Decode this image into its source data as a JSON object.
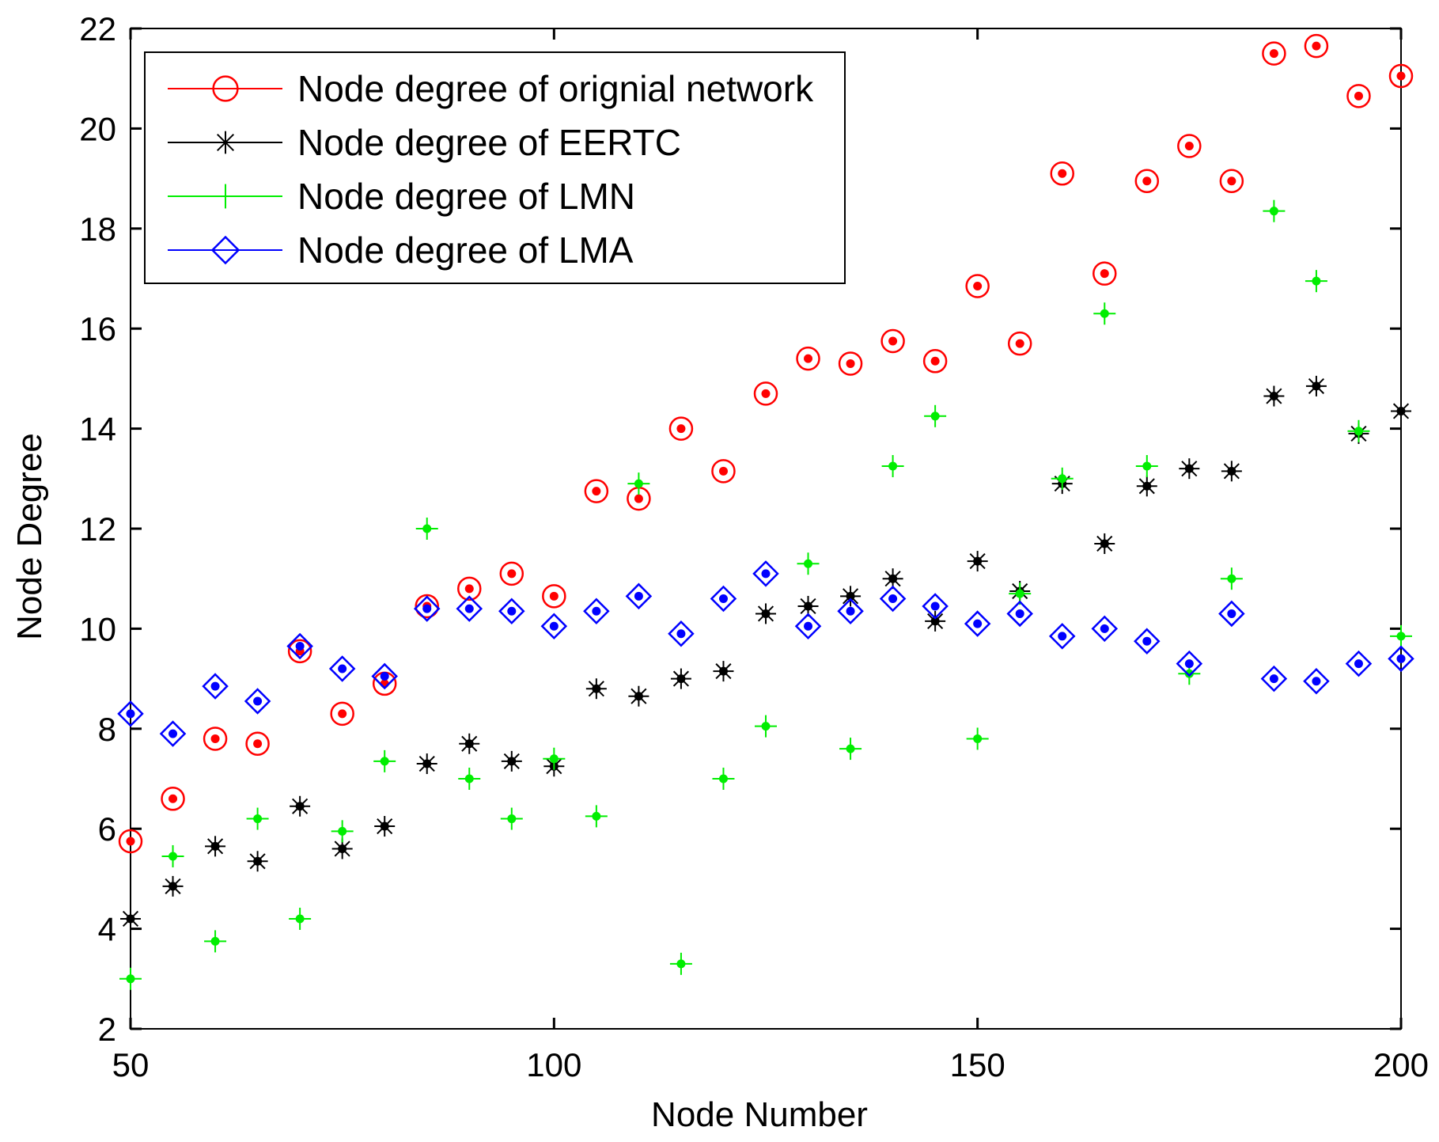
{
  "chart_data": {
    "type": "scatter",
    "title": "",
    "xlabel": "Node Number",
    "ylabel": "Node Degree",
    "xlim": [
      50,
      200
    ],
    "ylim": [
      2,
      22
    ],
    "xticks": [
      50,
      100,
      150,
      200
    ],
    "yticks": [
      2,
      4,
      6,
      8,
      10,
      12,
      14,
      16,
      18,
      20,
      22
    ],
    "grid": false,
    "legend_position": "top-left",
    "x": [
      50,
      55,
      60,
      65,
      70,
      75,
      80,
      85,
      90,
      95,
      100,
      105,
      110,
      115,
      120,
      125,
      130,
      135,
      140,
      145,
      150,
      155,
      160,
      165,
      170,
      175,
      180,
      185,
      190,
      195,
      200
    ],
    "series": [
      {
        "name": "Node degree of orignial network",
        "color": "#ff0000",
        "marker": "circle",
        "values": [
          5.75,
          6.6,
          7.8,
          7.7,
          9.55,
          8.3,
          8.9,
          10.45,
          10.8,
          11.1,
          10.65,
          12.75,
          12.6,
          14.0,
          13.15,
          14.7,
          15.4,
          15.3,
          15.75,
          15.35,
          16.85,
          15.7,
          19.1,
          17.1,
          18.95,
          19.65,
          18.95,
          21.5,
          21.65,
          20.65,
          21.05
        ]
      },
      {
        "name": "Node degree of EERTC",
        "color": "#000000",
        "marker": "star",
        "values": [
          4.2,
          4.85,
          5.65,
          5.35,
          6.45,
          5.6,
          6.05,
          7.3,
          7.7,
          7.35,
          7.25,
          8.8,
          8.65,
          9.0,
          9.15,
          10.3,
          10.45,
          10.65,
          11.0,
          10.15,
          11.35,
          10.75,
          12.9,
          11.7,
          12.85,
          13.2,
          13.15,
          14.65,
          14.85,
          13.9,
          14.35
        ]
      },
      {
        "name": "Node degree of LMN",
        "color": "#00ee00",
        "marker": "plus",
        "values": [
          3.0,
          5.45,
          3.75,
          6.2,
          4.2,
          5.95,
          7.35,
          12.0,
          7.0,
          6.2,
          7.4,
          6.25,
          12.9,
          3.3,
          7.0,
          8.05,
          11.3,
          7.6,
          13.25,
          14.25,
          7.8,
          10.7,
          13.0,
          16.3,
          13.25,
          9.1,
          11.0,
          18.35,
          16.95,
          13.95,
          9.85
        ]
      },
      {
        "name": "Node degree of LMA",
        "color": "#0000ff",
        "marker": "diamond",
        "values": [
          8.3,
          7.9,
          8.85,
          8.55,
          9.65,
          9.2,
          9.05,
          10.4,
          10.4,
          10.35,
          10.05,
          10.35,
          10.65,
          9.9,
          10.6,
          11.1,
          10.05,
          10.35,
          10.6,
          10.45,
          10.1,
          10.3,
          9.85,
          10.0,
          9.75,
          9.3,
          10.3,
          9.0,
          8.95,
          9.3,
          9.4
        ]
      }
    ]
  }
}
